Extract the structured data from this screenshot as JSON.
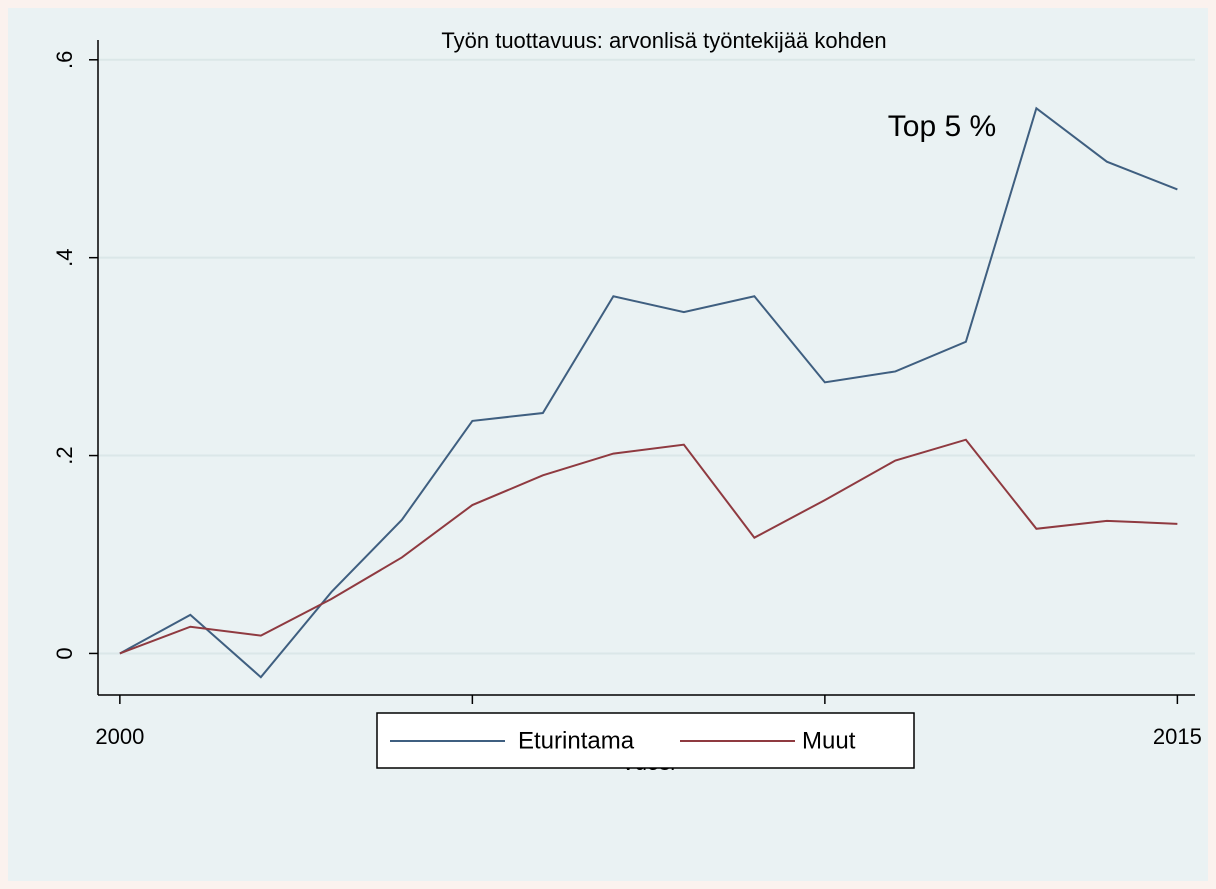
{
  "chart_data": {
    "type": "line",
    "title": "Työn tuottavuus: arvonlisä työntekijää kohden",
    "x_label": "Vuosi",
    "annotations": [
      "Top 5 %"
    ],
    "x": [
      2000,
      2001,
      2002,
      2003,
      2004,
      2005,
      2006,
      2007,
      2008,
      2009,
      2010,
      2011,
      2012,
      2013,
      2014,
      2015
    ],
    "series": [
      {
        "name": "Eturintama",
        "color": "#3f5f80",
        "values": [
          0,
          0.039,
          -0.024,
          0.062,
          0.135,
          0.235,
          0.243,
          0.361,
          0.345,
          0.361,
          0.274,
          0.285,
          0.315,
          0.551,
          0.497,
          0.469
        ]
      },
      {
        "name": "Muut",
        "color": "#8f3a40",
        "values": [
          0,
          0.027,
          0.018,
          0.055,
          0.097,
          0.15,
          0.18,
          0.202,
          0.211,
          0.117,
          0.155,
          0.195,
          0.216,
          0.126,
          0.134,
          0.131
        ]
      }
    ],
    "xlim": [
      1999.69,
      2015.25
    ],
    "xticks": [
      2000,
      2005,
      2010,
      2015
    ],
    "ylim": [
      -0.042,
      0.62
    ],
    "yticks": [
      0,
      {
        "value": 0.2,
        "label": ".2"
      },
      {
        "value": 0.4,
        "label": ".4"
      },
      {
        "value": 0.6,
        "label": ".6"
      }
    ],
    "grid": true,
    "legend": "bottom"
  }
}
